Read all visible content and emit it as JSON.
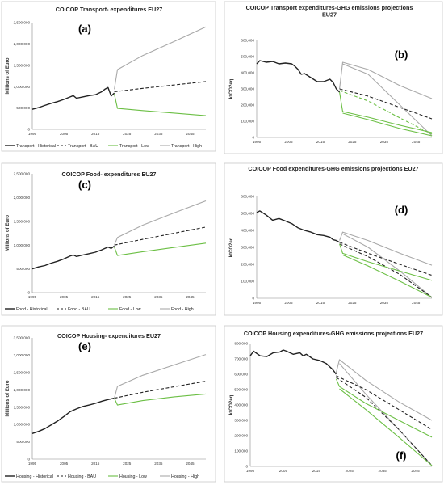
{
  "colors": {
    "historical": "#222222",
    "bau": "#222222",
    "low": "#6cbf45",
    "high": "#a8a8a8",
    "frame": "#c8c8c8"
  },
  "chart_data": [
    {
      "type": "line",
      "panel_label": "(a)",
      "title": "COICOP Transport- expenditures EU27",
      "ylabel": "Millions of Euro",
      "ylim": [
        0,
        2500000
      ],
      "xlim": [
        1995,
        2050
      ],
      "yticks": [
        "0",
        "500,000",
        "1,000,000",
        "1,500,000",
        "2,000,000",
        "2,500,000"
      ],
      "xticks": [
        "1995",
        "2005",
        "2015",
        "2025",
        "2035",
        "2045"
      ],
      "legend": [
        "Transport - Historical",
        "Transport - BAU",
        "Transport - Low",
        "Transport - High"
      ],
      "series": [
        {
          "name": "Transport - Historical",
          "style": "historical",
          "x": [
            1995,
            1997,
            1999,
            2001,
            2003,
            2005,
            2007,
            2008,
            2009,
            2011,
            2013,
            2015,
            2017,
            2018,
            2019,
            2020,
            2021
          ],
          "y": [
            470000,
            510000,
            560000,
            610000,
            650000,
            700000,
            760000,
            790000,
            730000,
            760000,
            790000,
            810000,
            880000,
            940000,
            980000,
            780000,
            850000
          ]
        },
        {
          "name": "Transport - BAU",
          "style": "bau",
          "x": [
            2021,
            2030,
            2040,
            2050
          ],
          "y": [
            880000,
            960000,
            1040000,
            1120000
          ]
        },
        {
          "name": "Transport - Low",
          "style": "low",
          "x": [
            2021,
            2022,
            2030,
            2040,
            2050
          ],
          "y": [
            830000,
            490000,
            440000,
            380000,
            320000
          ]
        },
        {
          "name": "Transport - High",
          "style": "high",
          "x": [
            2021,
            2022,
            2030,
            2040,
            2050
          ],
          "y": [
            940000,
            1400000,
            1730000,
            2060000,
            2400000
          ]
        }
      ]
    },
    {
      "type": "line",
      "panel_label": "(b)",
      "title": "COICOP Transport expenditures-GHG emissions projections EU27",
      "ylabel": "ktCO2eq",
      "ylim": [
        0,
        600000
      ],
      "xlim": [
        1995,
        2050
      ],
      "yticks": [
        "0",
        "100,000",
        "200,000",
        "300,000",
        "400,000",
        "500,000",
        "600,000"
      ],
      "xticks": [
        "1995",
        "2005",
        "2015",
        "2025",
        "2035",
        "2045"
      ],
      "series": [
        {
          "style": "historical",
          "x": [
            1995,
            1996,
            1998,
            2000,
            2002,
            2004,
            2006,
            2007,
            2008,
            2009,
            2010,
            2012,
            2014,
            2016,
            2018,
            2019,
            2020,
            2021
          ],
          "y": [
            455000,
            475000,
            465000,
            470000,
            455000,
            460000,
            455000,
            440000,
            420000,
            390000,
            395000,
            370000,
            345000,
            345000,
            360000,
            340000,
            300000,
            280000
          ]
        },
        {
          "style": "high",
          "x": [
            2021,
            2022,
            2030,
            2040,
            2050
          ],
          "y": [
            300000,
            465000,
            420000,
            320000,
            240000
          ]
        },
        {
          "style": "high",
          "x": [
            2022,
            2030,
            2040,
            2050
          ],
          "y": [
            455000,
            390000,
            200000,
            10000
          ]
        },
        {
          "style": "bau",
          "x": [
            2021,
            2030,
            2040,
            2050
          ],
          "y": [
            300000,
            255000,
            185000,
            115000
          ]
        },
        {
          "style": "low",
          "dash": true,
          "x": [
            2021,
            2030,
            2040,
            2050
          ],
          "y": [
            290000,
            225000,
            120000,
            20000
          ]
        },
        {
          "style": "low",
          "x": [
            2021,
            2022,
            2030,
            2040,
            2050
          ],
          "y": [
            280000,
            160000,
            125000,
            75000,
            30000
          ]
        },
        {
          "style": "low",
          "x": [
            2022,
            2030,
            2040,
            2050
          ],
          "y": [
            150000,
            110000,
            55000,
            10000
          ]
        }
      ]
    },
    {
      "type": "line",
      "panel_label": "(c)",
      "title": "COICOP Food- expenditures EU27",
      "ylabel": "Millions of Euro",
      "ylim": [
        0,
        2500000
      ],
      "xlim": [
        1995,
        2050
      ],
      "yticks": [
        "0",
        "500,000",
        "1,000,000",
        "1,500,000",
        "2,000,000",
        "2,500,000"
      ],
      "xticks": [
        "1995",
        "2005",
        "2015",
        "2025",
        "2035",
        "2045"
      ],
      "legend": [
        "Food - Historical",
        "Food - BAU",
        "Food - Low",
        "Food - High"
      ],
      "series": [
        {
          "name": "Food - Historical",
          "style": "historical",
          "x": [
            1995,
            1997,
            1999,
            2001,
            2003,
            2005,
            2007,
            2008,
            2009,
            2011,
            2013,
            2015,
            2017,
            2019,
            2020,
            2021
          ],
          "y": [
            500000,
            540000,
            570000,
            620000,
            660000,
            710000,
            770000,
            790000,
            760000,
            790000,
            820000,
            850000,
            900000,
            960000,
            930000,
            980000
          ]
        },
        {
          "name": "Food - BAU",
          "style": "bau",
          "x": [
            2021,
            2030,
            2040,
            2050
          ],
          "y": [
            1000000,
            1120000,
            1250000,
            1380000
          ]
        },
        {
          "name": "Food - Low",
          "style": "low",
          "x": [
            2021,
            2022,
            2030,
            2040,
            2050
          ],
          "y": [
            960000,
            780000,
            860000,
            950000,
            1040000
          ]
        },
        {
          "name": "Food - High",
          "style": "high",
          "x": [
            2021,
            2022,
            2030,
            2040,
            2050
          ],
          "y": [
            1000000,
            1160000,
            1420000,
            1680000,
            1930000
          ]
        }
      ]
    },
    {
      "type": "line",
      "panel_label": "(d)",
      "title": "COICOP Food expenditures-GHG emissions projections EU27",
      "ylabel": "ktCO2eq",
      "ylim": [
        0,
        600000
      ],
      "xlim": [
        1995,
        2050
      ],
      "yticks": [
        "0",
        "100,000",
        "200,000",
        "300,000",
        "400,000",
        "500,000",
        "600,000"
      ],
      "xticks": [
        "1995",
        "2005",
        "2015",
        "2025",
        "2035",
        "2045"
      ],
      "series": [
        {
          "style": "historical",
          "x": [
            1995,
            1996,
            1998,
            2000,
            2002,
            2004,
            2006,
            2008,
            2010,
            2012,
            2014,
            2016,
            2018,
            2019,
            2020,
            2021
          ],
          "y": [
            505000,
            515000,
            490000,
            460000,
            470000,
            455000,
            440000,
            415000,
            400000,
            390000,
            375000,
            370000,
            360000,
            345000,
            340000,
            330000
          ]
        },
        {
          "style": "high",
          "x": [
            2021,
            2022,
            2030,
            2040,
            2050
          ],
          "y": [
            340000,
            390000,
            340000,
            265000,
            195000
          ]
        },
        {
          "style": "high",
          "x": [
            2022,
            2030,
            2040,
            2050
          ],
          "y": [
            380000,
            300000,
            160000,
            5000
          ]
        },
        {
          "style": "bau",
          "x": [
            2021,
            2030,
            2040,
            2050
          ],
          "y": [
            330000,
            265000,
            200000,
            135000
          ]
        },
        {
          "style": "bau",
          "x": [
            2021,
            2030,
            2040,
            2050
          ],
          "y": [
            320000,
            245000,
            140000,
            5000
          ]
        },
        {
          "style": "low",
          "x": [
            2021,
            2022,
            2030,
            2040,
            2050
          ],
          "y": [
            320000,
            265000,
            215000,
            160000,
            105000
          ]
        },
        {
          "style": "low",
          "x": [
            2022,
            2030,
            2040,
            2050
          ],
          "y": [
            255000,
            190000,
            100000,
            5000
          ]
        }
      ]
    },
    {
      "type": "line",
      "panel_label": "(e)",
      "title": "COICOP Housing- expenditures EU27",
      "ylabel": "Millions of Euro",
      "ylim": [
        0,
        3500000
      ],
      "xlim": [
        1995,
        2050
      ],
      "yticks": [
        "0",
        "500,000",
        "1,000,000",
        "1,500,000",
        "2,000,000",
        "2,500,000",
        "3,000,000",
        "3,500,000"
      ],
      "xticks": [
        "1995",
        "2005",
        "2015",
        "2025",
        "2035",
        "2045"
      ],
      "legend": [
        "Housing - Historical",
        "Housing - BAU",
        "Housing - Low",
        "Housing - High"
      ],
      "series": [
        {
          "name": "Housing - Historical",
          "style": "historical",
          "x": [
            1995,
            1997,
            1999,
            2001,
            2003,
            2005,
            2007,
            2009,
            2011,
            2013,
            2015,
            2017,
            2019,
            2021
          ],
          "y": [
            740000,
            800000,
            880000,
            990000,
            1100000,
            1230000,
            1370000,
            1450000,
            1520000,
            1560000,
            1610000,
            1670000,
            1720000,
            1760000
          ]
        },
        {
          "name": "Housing - BAU",
          "style": "bau",
          "x": [
            2021,
            2030,
            2040,
            2050
          ],
          "y": [
            1760000,
            1930000,
            2090000,
            2250000
          ]
        },
        {
          "name": "Housing - Low",
          "style": "low",
          "x": [
            2021,
            2022,
            2030,
            2040,
            2050
          ],
          "y": [
            1760000,
            1560000,
            1690000,
            1800000,
            1880000
          ]
        },
        {
          "name": "Housing - High",
          "style": "high",
          "x": [
            2021,
            2022,
            2030,
            2040,
            2050
          ],
          "y": [
            1760000,
            2100000,
            2420000,
            2720000,
            3020000
          ]
        }
      ]
    },
    {
      "type": "line",
      "panel_label": "(f)",
      "title": "COICOP Housing expenditures-GHG emissions projections EU27",
      "ylabel": "ktCO2eq",
      "ylim": [
        0,
        800000
      ],
      "xlim": [
        1995,
        2050
      ],
      "yticks": [
        "0",
        "100,000",
        "200,000",
        "300,000",
        "400,000",
        "500,000",
        "600,000",
        "700,000",
        "800,000"
      ],
      "xticks": [
        "1995",
        "2005",
        "2015",
        "2025",
        "2035",
        "2045"
      ],
      "series": [
        {
          "style": "historical",
          "x": [
            1995,
            1996,
            1998,
            2000,
            2002,
            2004,
            2005,
            2006,
            2008,
            2010,
            2011,
            2012,
            2014,
            2016,
            2017,
            2018,
            2019,
            2020,
            2021
          ],
          "y": [
            720000,
            750000,
            720000,
            715000,
            740000,
            745000,
            758000,
            750000,
            730000,
            740000,
            720000,
            730000,
            700000,
            690000,
            680000,
            670000,
            650000,
            630000,
            600000
          ]
        },
        {
          "style": "high",
          "x": [
            2021,
            2022,
            2030,
            2040,
            2050
          ],
          "y": [
            610000,
            695000,
            560000,
            420000,
            300000
          ]
        },
        {
          "style": "high",
          "x": [
            2022,
            2030,
            2040,
            2050
          ],
          "y": [
            670000,
            470000,
            240000,
            5000
          ]
        },
        {
          "style": "bau",
          "x": [
            2021,
            2030,
            2040,
            2050
          ],
          "y": [
            590000,
            500000,
            370000,
            240000
          ]
        },
        {
          "style": "bau",
          "x": [
            2021,
            2030,
            2040,
            2050
          ],
          "y": [
            580000,
            450000,
            240000,
            5000
          ]
        },
        {
          "style": "low",
          "x": [
            2021,
            2022,
            2030,
            2040,
            2050
          ],
          "y": [
            570000,
            520000,
            410000,
            300000,
            190000
          ]
        },
        {
          "style": "low",
          "x": [
            2022,
            2030,
            2040,
            2050
          ],
          "y": [
            505000,
            370000,
            190000,
            5000
          ]
        }
      ]
    }
  ]
}
